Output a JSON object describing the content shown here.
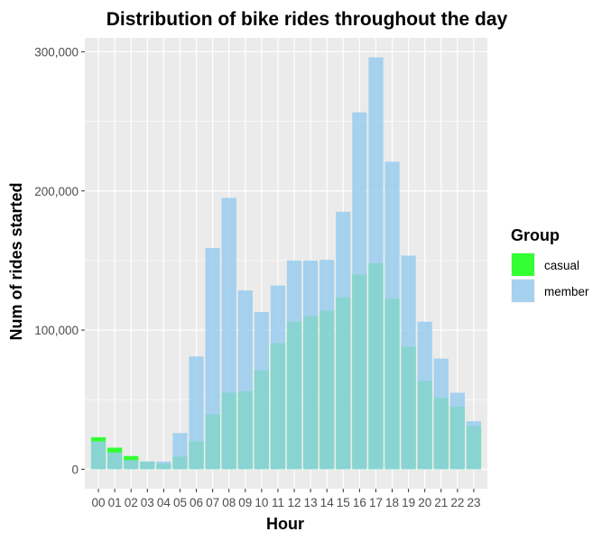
{
  "chart_data": {
    "type": "bar",
    "title": "Distribution of bike rides throughout the day",
    "xlabel": "Hour",
    "ylabel": "Num of rides started",
    "categories": [
      "00",
      "01",
      "02",
      "03",
      "04",
      "05",
      "06",
      "07",
      "08",
      "09",
      "10",
      "11",
      "12",
      "13",
      "14",
      "15",
      "16",
      "17",
      "18",
      "19",
      "20",
      "21",
      "22",
      "23"
    ],
    "series": [
      {
        "name": "casual",
        "color": "#33ff33",
        "values": [
          23000,
          15500,
          9500,
          5500,
          4000,
          9000,
          20000,
          39500,
          55000,
          56000,
          71000,
          90500,
          106000,
          110000,
          114000,
          123500,
          140000,
          148000,
          122500,
          88000,
          63500,
          51500,
          45000,
          31000
        ]
      },
      {
        "name": "member",
        "color": "#99ccee",
        "values": [
          20000,
          12000,
          6500,
          5500,
          5500,
          26000,
          81000,
          159000,
          195000,
          128500,
          113000,
          132000,
          150000,
          150000,
          150500,
          185000,
          256500,
          296000,
          221000,
          153500,
          106000,
          79500,
          55000,
          34500
        ]
      }
    ],
    "ylim": [
      -14000,
      310000
    ],
    "yticks": [
      0,
      100000,
      200000,
      300000
    ],
    "ytick_labels": [
      "0",
      "100,000",
      "200,000",
      "300,000"
    ],
    "grid": true,
    "legend": {
      "title": "Group",
      "position": "right"
    }
  }
}
